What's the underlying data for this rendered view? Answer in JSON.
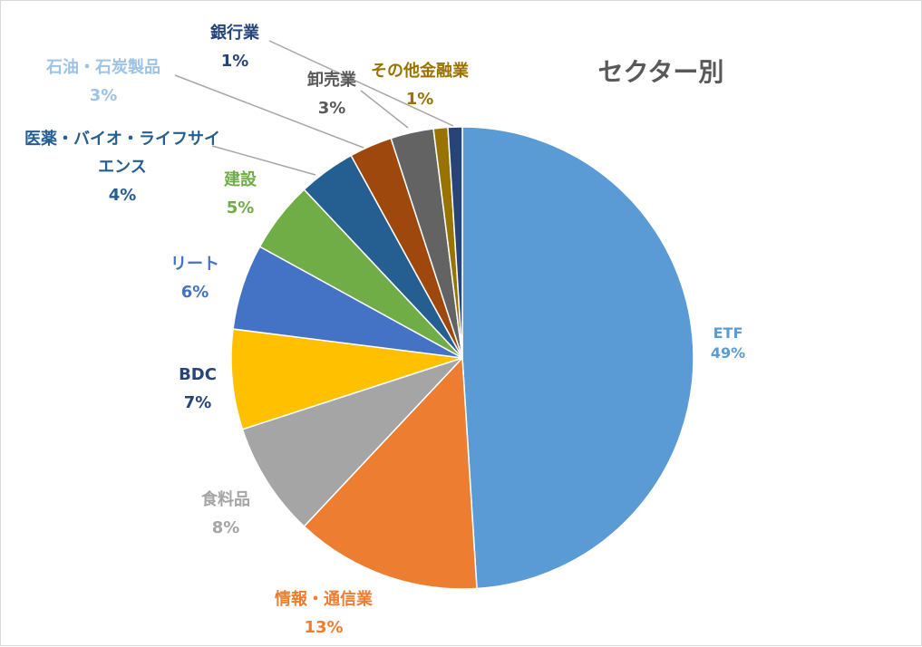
{
  "chart_data": {
    "type": "pie",
    "title": "セクター別",
    "categories": [
      "ETF",
      "情報・通信業",
      "食料品",
      "BDC",
      "リート",
      "建設",
      "医薬・バイオ・ライフサイエンス",
      "石油・石炭製品",
      "卸売業",
      "その他金融業",
      "銀行業"
    ],
    "values": [
      49,
      13,
      8,
      7,
      6,
      5,
      4,
      3,
      3,
      1,
      1
    ],
    "value_labels": [
      "49%",
      "13%",
      "8%",
      "7%",
      "6%",
      "5%",
      "4%",
      "3%",
      "3%",
      "1%",
      "1%"
    ],
    "colors": [
      "#5B9BD5",
      "#ED7D31",
      "#A5A5A5",
      "#FFC000",
      "#4472C4",
      "#70AD47",
      "#255E91",
      "#9E480E",
      "#636363",
      "#997300",
      "#264478"
    ],
    "label_colors": [
      "#5B9BD5",
      "#ED7D31",
      "#A5A5A5",
      "#264478",
      "#4472C4",
      "#70AD47",
      "#255E91",
      "#9DC3E6",
      "#595959",
      "#997300",
      "#264478"
    ],
    "legend": "none",
    "start_angle": "12 o'clock",
    "direction": "clockwise"
  }
}
